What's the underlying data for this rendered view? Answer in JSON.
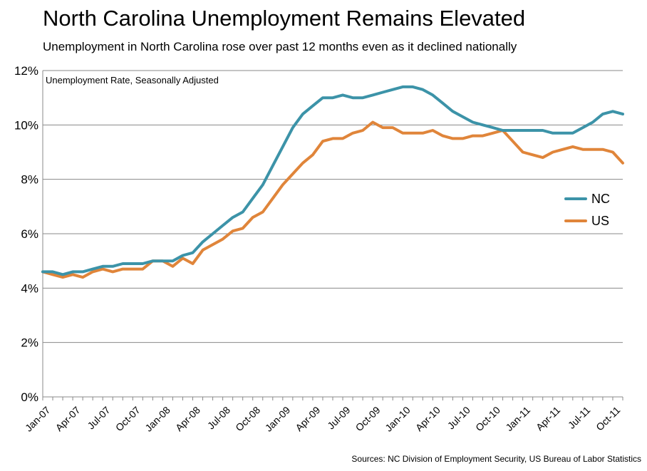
{
  "title": "North Carolina Unemployment Remains Elevated",
  "subtitle": "Unemployment in North Carolina rose over past 12 months even as it declined nationally",
  "source": "Sources:  NC Division of Employment Security, US Bureau of Labor Statistics",
  "colors": {
    "NC": "#3c93a8",
    "US": "#e0853a",
    "grid": "#888888",
    "axis": "#888888"
  },
  "chart_data": {
    "type": "line",
    "title": "North Carolina Unemployment Remains Elevated",
    "subtitle": "Unemployment in North Carolina rose over past 12 months even as it declined nationally",
    "inner_label": "Unemployment Rate, Seasonally Adjusted",
    "ylim": [
      0,
      12
    ],
    "y_ticks": [
      0,
      2,
      4,
      6,
      8,
      10,
      12
    ],
    "y_tick_labels": [
      "0%",
      "2%",
      "4%",
      "6%",
      "8%",
      "10%",
      "12%"
    ],
    "x_tick_labels": [
      "Jan-07",
      "Apr-07",
      "Jul-07",
      "Oct-07",
      "Jan-08",
      "Apr-08",
      "Jul-08",
      "Oct-08",
      "Jan-09",
      "Apr-09",
      "Jul-09",
      "Oct-09",
      "Jan-10",
      "Apr-10",
      "Jul-10",
      "Oct-10",
      "Jan-11",
      "Apr-11",
      "Jul-11",
      "Oct-11"
    ],
    "x": [
      "Jan-07",
      "Feb-07",
      "Mar-07",
      "Apr-07",
      "May-07",
      "Jun-07",
      "Jul-07",
      "Aug-07",
      "Sep-07",
      "Oct-07",
      "Nov-07",
      "Dec-07",
      "Jan-08",
      "Feb-08",
      "Mar-08",
      "Apr-08",
      "May-08",
      "Jun-08",
      "Jul-08",
      "Aug-08",
      "Sep-08",
      "Oct-08",
      "Nov-08",
      "Dec-08",
      "Jan-09",
      "Feb-09",
      "Mar-09",
      "Apr-09",
      "May-09",
      "Jun-09",
      "Jul-09",
      "Aug-09",
      "Sep-09",
      "Oct-09",
      "Nov-09",
      "Dec-09",
      "Jan-10",
      "Feb-10",
      "Mar-10",
      "Apr-10",
      "May-10",
      "Jun-10",
      "Jul-10",
      "Aug-10",
      "Sep-10",
      "Oct-10",
      "Nov-10",
      "Dec-10",
      "Jan-11",
      "Feb-11",
      "Mar-11",
      "Apr-11",
      "May-11",
      "Jun-11",
      "Jul-11",
      "Aug-11",
      "Sep-11",
      "Oct-11",
      "Nov-11"
    ],
    "legend_position": "right",
    "grid": true,
    "series": [
      {
        "name": "NC",
        "values": [
          4.6,
          4.6,
          4.5,
          4.6,
          4.6,
          4.7,
          4.8,
          4.8,
          4.9,
          4.9,
          4.9,
          5.0,
          5.0,
          5.0,
          5.2,
          5.3,
          5.7,
          6.0,
          6.3,
          6.6,
          6.8,
          7.3,
          7.8,
          8.5,
          9.2,
          9.9,
          10.4,
          10.7,
          11.0,
          11.0,
          11.1,
          11.0,
          11.0,
          11.1,
          11.2,
          11.3,
          11.4,
          11.4,
          11.3,
          11.1,
          10.8,
          10.5,
          10.3,
          10.1,
          10.0,
          9.9,
          9.8,
          9.8,
          9.8,
          9.8,
          9.8,
          9.7,
          9.7,
          9.7,
          9.9,
          10.1,
          10.4,
          10.5,
          10.4
        ]
      },
      {
        "name": "US",
        "values": [
          4.6,
          4.5,
          4.4,
          4.5,
          4.4,
          4.6,
          4.7,
          4.6,
          4.7,
          4.7,
          4.7,
          5.0,
          5.0,
          4.8,
          5.1,
          4.9,
          5.4,
          5.6,
          5.8,
          6.1,
          6.2,
          6.6,
          6.8,
          7.3,
          7.8,
          8.2,
          8.6,
          8.9,
          9.4,
          9.5,
          9.5,
          9.7,
          9.8,
          10.1,
          9.9,
          9.9,
          9.7,
          9.7,
          9.7,
          9.8,
          9.6,
          9.5,
          9.5,
          9.6,
          9.6,
          9.7,
          9.8,
          9.4,
          9.0,
          8.9,
          8.8,
          9.0,
          9.1,
          9.2,
          9.1,
          9.1,
          9.1,
          9.0,
          8.6
        ]
      }
    ]
  }
}
